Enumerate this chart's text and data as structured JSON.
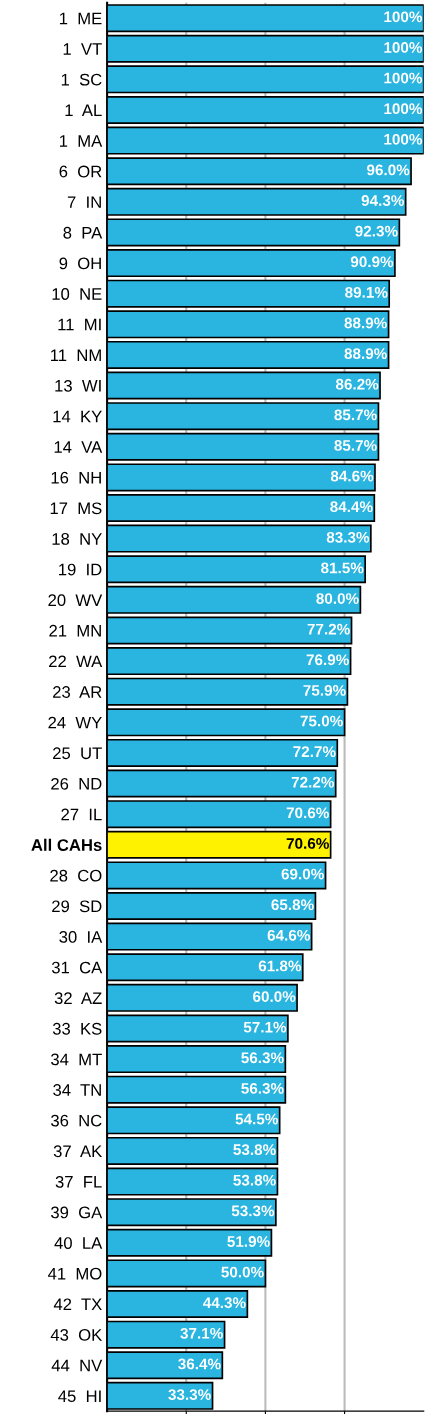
{
  "chart_data": {
    "type": "bar",
    "orientation": "horizontal",
    "categories": [
      "1  ME",
      "1  VT",
      "1  SC",
      "1  AL",
      "1  MA",
      "6  OR",
      "7  IN",
      "8  PA",
      "9  OH",
      "10  NE",
      "11  MI",
      "11  NM",
      "13  WI",
      "14  KY",
      "14  VA",
      "16  NH",
      "17  MS",
      "18  NY",
      "19  ID",
      "20  WV",
      "21  MN",
      "22  WA",
      "23  AR",
      "24  WY",
      "25  UT",
      "26  ND",
      "27  IL",
      "All CAHs",
      "28  CO",
      "29  SD",
      "30  IA",
      "31  CA",
      "32  AZ",
      "33  KS",
      "34  MT",
      "34  TN",
      "36  NC",
      "37  AK",
      "37  FL",
      "39  GA",
      "40  LA",
      "41  MO",
      "42  TX",
      "43  OK",
      "44  NV",
      "45  HI"
    ],
    "values": [
      100,
      100,
      100,
      100,
      100,
      96.0,
      94.3,
      92.3,
      90.9,
      89.1,
      88.9,
      88.9,
      86.2,
      85.7,
      85.7,
      84.6,
      84.4,
      83.3,
      81.5,
      80.0,
      77.2,
      76.9,
      75.9,
      75.0,
      72.7,
      72.2,
      70.6,
      70.6,
      69.0,
      65.8,
      64.6,
      61.8,
      60.0,
      57.1,
      56.3,
      56.3,
      54.5,
      53.8,
      53.8,
      53.3,
      51.9,
      50.0,
      44.3,
      37.1,
      36.4,
      33.3
    ],
    "value_labels": [
      "100%",
      "100%",
      "100%",
      "100%",
      "100%",
      "96.0%",
      "94.3%",
      "92.3%",
      "90.9%",
      "89.1%",
      "88.9%",
      "88.9%",
      "86.2%",
      "85.7%",
      "85.7%",
      "84.6%",
      "84.4%",
      "83.3%",
      "81.5%",
      "80.0%",
      "77.2%",
      "76.9%",
      "75.9%",
      "75.0%",
      "72.7%",
      "72.2%",
      "70.6%",
      "70.6%",
      "69.0%",
      "65.8%",
      "64.6%",
      "61.8%",
      "60.0%",
      "57.1%",
      "56.3%",
      "56.3%",
      "54.5%",
      "53.8%",
      "53.8%",
      "53.3%",
      "51.9%",
      "50.0%",
      "44.3%",
      "37.1%",
      "36.4%",
      "33.3%"
    ],
    "colors": [
      "#29b5e0",
      "#29b5e0",
      "#29b5e0",
      "#29b5e0",
      "#29b5e0",
      "#29b5e0",
      "#29b5e0",
      "#29b5e0",
      "#29b5e0",
      "#29b5e0",
      "#29b5e0",
      "#29b5e0",
      "#29b5e0",
      "#29b5e0",
      "#29b5e0",
      "#29b5e0",
      "#29b5e0",
      "#29b5e0",
      "#29b5e0",
      "#29b5e0",
      "#29b5e0",
      "#29b5e0",
      "#29b5e0",
      "#29b5e0",
      "#29b5e0",
      "#29b5e0",
      "#29b5e0",
      "#fff200",
      "#29b5e0",
      "#29b5e0",
      "#29b5e0",
      "#29b5e0",
      "#29b5e0",
      "#29b5e0",
      "#29b5e0",
      "#29b5e0",
      "#29b5e0",
      "#29b5e0",
      "#29b5e0",
      "#29b5e0",
      "#29b5e0",
      "#29b5e0",
      "#29b5e0",
      "#29b5e0",
      "#29b5e0",
      "#29b5e0"
    ],
    "xlim": [
      0,
      100
    ],
    "xticks": [
      {
        "value": 25,
        "label": null
      },
      {
        "value": 50,
        "label": null
      },
      {
        "value": 75,
        "label": null
      }
    ],
    "grid": "x",
    "tick_labels": "y"
  }
}
